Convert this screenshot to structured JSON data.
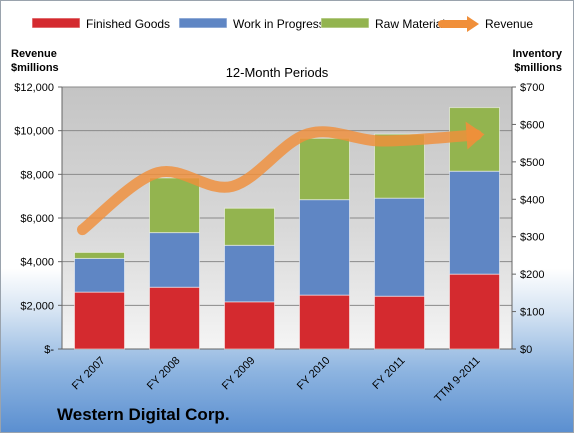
{
  "chart_data": {
    "type": "bar",
    "title": "12-Month Periods",
    "footer": "Western Digital Corp.",
    "categories": [
      "FY 2007",
      "FY 2008",
      "FY 2009",
      "FY 2010",
      "FY 2011",
      "TTM 9-2011"
    ],
    "left_axis": {
      "label_lines": [
        "Revenue",
        "$millions"
      ],
      "ylim": [
        0,
        12000
      ],
      "tick_labels": [
        "$-",
        "$2,000",
        "$4,000",
        "$6,000",
        "$8,000",
        "$10,000",
        "$12,000"
      ]
    },
    "right_axis": {
      "label_lines": [
        "Inventory",
        "$millions"
      ],
      "ylim": [
        0,
        700
      ],
      "tick_labels": [
        "$0",
        "$100",
        "$200",
        "$300",
        "$400",
        "$500",
        "$600",
        "$700"
      ]
    },
    "stacked_series": [
      {
        "name": "Finished Goods",
        "color": "#d42a2f",
        "values": [
          152,
          165,
          126,
          144,
          141,
          200
        ]
      },
      {
        "name": "Work in Progress",
        "color": "#5f86c4",
        "values": [
          90,
          146,
          151,
          255,
          262,
          275
        ]
      },
      {
        "name": "Raw Materials",
        "color": "#93b44f",
        "values": [
          16,
          146,
          99,
          164,
          171,
          170
        ]
      }
    ],
    "line_series": {
      "name": "Revenue",
      "color": "#f08f3a",
      "values": [
        5468,
        8074,
        7453,
        9850,
        9526,
        9806
      ]
    },
    "grid": true,
    "legend_position": "top"
  }
}
